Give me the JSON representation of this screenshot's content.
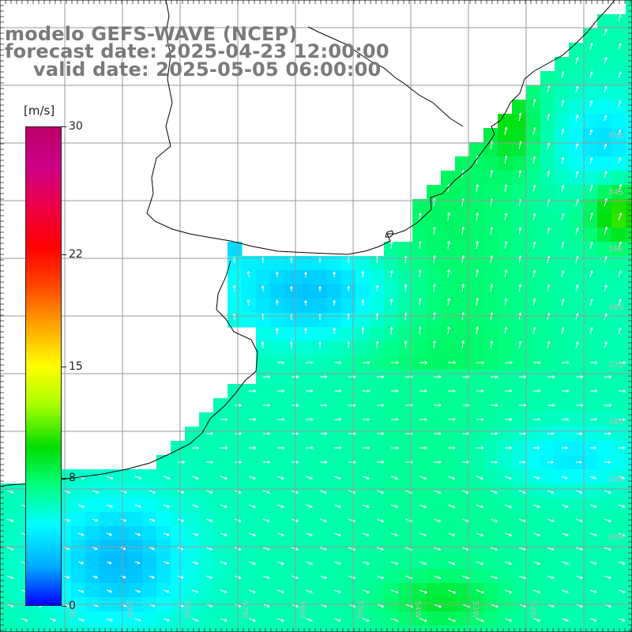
{
  "title": {
    "line1": "modelo GEFS-WAVE (NCEP)",
    "line2": "forecast date: 2025-04-23 12:00:00",
    "line3": "valid date: 2025-05-05 06:00:00"
  },
  "colorbar": {
    "unit": "[m/s]",
    "ticks": [
      "30",
      "22",
      "15",
      "8",
      "0"
    ],
    "tick_values": [
      30,
      22,
      15,
      8,
      0
    ],
    "min": 0,
    "max": 30,
    "colors": [
      "#0000ff",
      "#00aaff",
      "#00ffff",
      "#00ff80",
      "#00dd00",
      "#aaff00",
      "#ffff00",
      "#ffaa00",
      "#ff4400",
      "#ff0000",
      "#ee0044",
      "#cc0088",
      "#bb0066"
    ]
  },
  "map": {
    "lat_labels": [
      "35S",
      "34S",
      "36S",
      "36S",
      "37S",
      "38S",
      "39S",
      "40S"
    ],
    "lon_labels": [
      "60W",
      "59W",
      "58W",
      "57W",
      "56W",
      "55W",
      "54W",
      "53W",
      "52W"
    ],
    "land_color": "#ffffff",
    "grid_color": "#999999",
    "coast_color": "#000000",
    "arrow_color": "#ffffff"
  }
}
